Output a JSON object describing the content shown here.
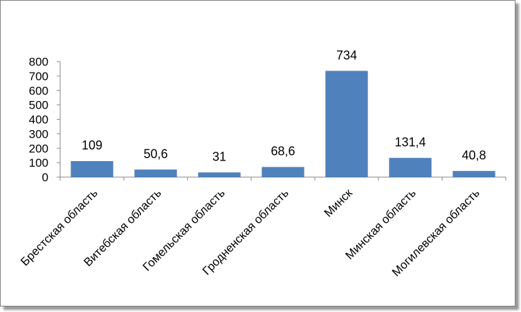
{
  "chart_data": {
    "type": "bar",
    "title": "",
    "xlabel": "",
    "ylabel": "",
    "categories": [
      "Брестская область",
      "Витебская область",
      "Гомельская область",
      "Гродненская область",
      "Минск",
      "Минская область",
      "Могилевская область"
    ],
    "values": [
      109,
      50.6,
      31,
      68.6,
      734,
      131.4,
      40.8
    ],
    "data_labels": [
      "109",
      "50,6",
      "31",
      "68,6",
      "734",
      "131,4",
      "40,8"
    ],
    "ylim": [
      0,
      800
    ],
    "yticks": [
      0,
      100,
      200,
      300,
      400,
      500,
      600,
      700,
      800
    ],
    "grid": false,
    "legend": "none",
    "bar_color": "#4f81bd"
  }
}
